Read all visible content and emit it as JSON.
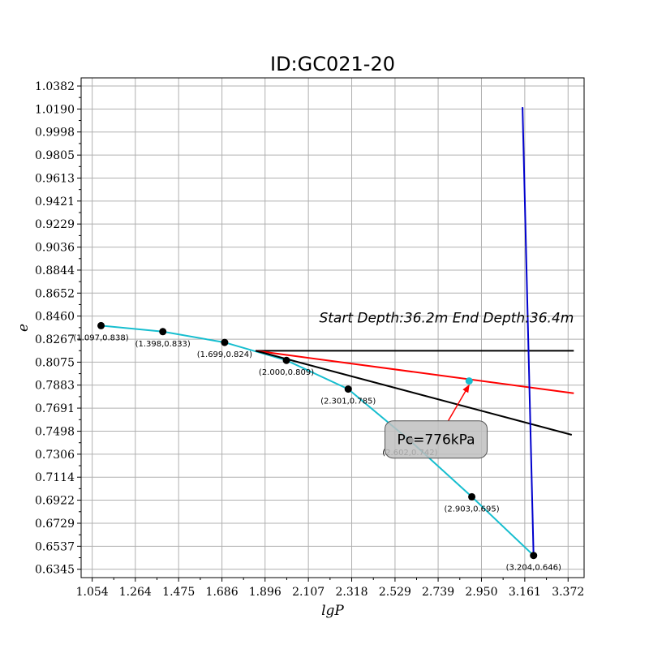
{
  "chart_data": {
    "type": "line",
    "title": "ID:GC021-20",
    "xlabel": "lgP",
    "ylabel": "e",
    "xlim": [
      1.0,
      3.45
    ],
    "ylim": [
      0.6275,
      1.045
    ],
    "grid": true,
    "x_ticks": [
      "1.054",
      "1.264",
      "1.475",
      "1.686",
      "1.896",
      "2.107",
      "2.318",
      "2.529",
      "2.739",
      "2.950",
      "3.161",
      "3.372"
    ],
    "y_ticks": [
      "0.6345",
      "0.6537",
      "0.6729",
      "0.6922",
      "0.7114",
      "0.7306",
      "0.7498",
      "0.7691",
      "0.7883",
      "0.8075",
      "0.8267",
      "0.8460",
      "0.8652",
      "0.8844",
      "0.9036",
      "0.9229",
      "0.9421",
      "0.9613",
      "0.9805",
      "0.9998",
      "1.0190",
      "1.0382"
    ],
    "points": [
      {
        "x": 1.097,
        "y": 0.838,
        "label": "(1.097,0.838)"
      },
      {
        "x": 1.398,
        "y": 0.833,
        "label": "(1.398,0.833)"
      },
      {
        "x": 1.699,
        "y": 0.824,
        "label": "(1.699,0.824)"
      },
      {
        "x": 2.0,
        "y": 0.809,
        "label": "(2.000,0.809)"
      },
      {
        "x": 2.301,
        "y": 0.785,
        "label": "(2.301,0.785)"
      },
      {
        "x": 2.602,
        "y": 0.742,
        "label": "(2.602,0.742)"
      },
      {
        "x": 2.903,
        "y": 0.695,
        "label": "(2.903,0.695)"
      },
      {
        "x": 3.204,
        "y": 0.646,
        "label": "(3.204,0.646)"
      }
    ],
    "series": [
      {
        "color": "#17becf",
        "x": [
          1.097,
          1.398,
          1.699,
          2.0,
          2.301,
          2.602,
          2.903,
          3.204
        ],
        "y": [
          0.838,
          0.833,
          0.824,
          0.809,
          0.785,
          0.742,
          0.695,
          0.646
        ]
      },
      {
        "color": "#000000",
        "x": [
          1.85,
          3.4
        ],
        "y": [
          0.817,
          0.817
        ]
      },
      {
        "color": "#ff0000",
        "x": [
          1.85,
          3.4
        ],
        "y": [
          0.817,
          0.7815
        ]
      },
      {
        "color": "#000000",
        "x": [
          1.85,
          3.39
        ],
        "y": [
          0.817,
          0.7468
        ]
      },
      {
        "color": "#0000cd",
        "x": [
          3.15,
          3.204
        ],
        "y": [
          1.0205,
          0.646
        ]
      }
    ],
    "pc_point": {
      "x": 2.89,
      "y": 0.7918,
      "color": "#17becf"
    },
    "annotations": {
      "depth": "Start Depth:36.2m End Depth:36.4m",
      "pc": "Pc=776kPa"
    }
  }
}
